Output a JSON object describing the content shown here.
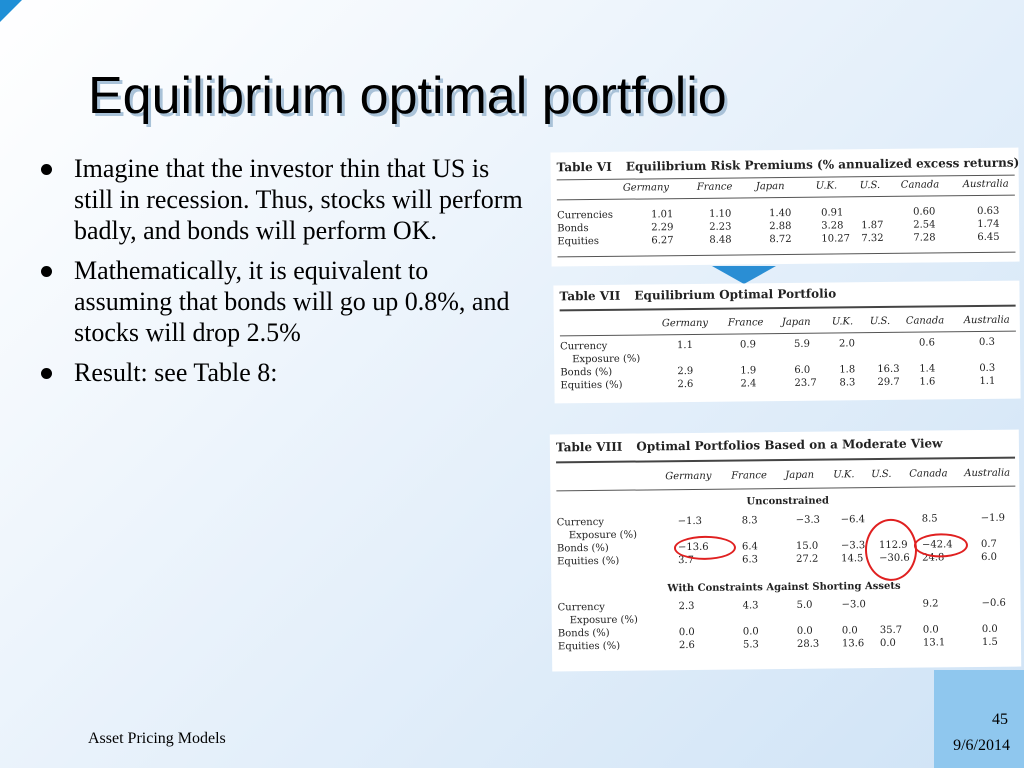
{
  "slide": {
    "title": "Equilibrium optimal portfolio",
    "bullets": [
      "Imagine that the investor thin that US is still in recession. Thus, stocks will perform badly, and bonds will perform OK.",
      "Mathematically, it is  equivalent to assuming that bonds will go up 0.8%, and stocks will drop 2.5%",
      "Result: see Table 8:"
    ],
    "footer_left": "Asset Pricing Models",
    "page_number": "45",
    "date": "9/6/2014"
  },
  "countries": [
    "Germany",
    "France",
    "Japan",
    "U.K.",
    "U.S.",
    "Canada",
    "Australia"
  ],
  "table6": {
    "label": "Table VI",
    "caption": "Equilibrium Risk Premiums (% annualized excess returns)",
    "rows": [
      {
        "label": "Currencies",
        "values": [
          "1.01",
          "1.10",
          "1.40",
          "0.91",
          "",
          "0.60",
          "0.63"
        ]
      },
      {
        "label": "Bonds",
        "values": [
          "2.29",
          "2.23",
          "2.88",
          "3.28",
          "1.87",
          "2.54",
          "1.74"
        ]
      },
      {
        "label": "Equities",
        "values": [
          "6.27",
          "8.48",
          "8.72",
          "10.27",
          "7.32",
          "7.28",
          "6.45"
        ]
      }
    ]
  },
  "table7": {
    "label": "Table VII",
    "caption": "Equilibrium Optimal Portfolio",
    "rows": [
      {
        "label": "Currency",
        "values": [
          "1.1",
          "0.9",
          "5.9",
          "2.0",
          "",
          "0.6",
          "0.3"
        ]
      },
      {
        "label": "Exposure (%)",
        "values": [
          "",
          "",
          "",
          "",
          "",
          "",
          ""
        ]
      },
      {
        "label": "Bonds (%)",
        "values": [
          "2.9",
          "1.9",
          "6.0",
          "1.8",
          "16.3",
          "1.4",
          "0.3"
        ]
      },
      {
        "label": "Equities (%)",
        "values": [
          "2.6",
          "2.4",
          "23.7",
          "8.3",
          "29.7",
          "1.6",
          "1.1"
        ]
      }
    ]
  },
  "table8": {
    "label": "Table VIII",
    "caption": "Optimal Portfolios Based on a Moderate View",
    "unconstrained_title": "Unconstrained",
    "unconstrained_rows": [
      {
        "label": "Currency",
        "values": [
          "−1.3",
          "8.3",
          "−3.3",
          "−6.4",
          "",
          "8.5",
          "−1.9"
        ]
      },
      {
        "label": "Exposure (%)",
        "values": [
          "",
          "",
          "",
          "",
          "",
          "",
          ""
        ]
      },
      {
        "label": "Bonds (%)",
        "values": [
          "−13.6",
          "6.4",
          "15.0",
          "−3.3",
          "112.9",
          "−42.4",
          "0.7"
        ]
      },
      {
        "label": "Equities (%)",
        "values": [
          "3.7",
          "6.3",
          "27.2",
          "14.5",
          "−30.6",
          "24.8",
          "6.0"
        ]
      }
    ],
    "constrained_title": "With Constraints Against Shorting Assets",
    "constrained_rows": [
      {
        "label": "Currency",
        "values": [
          "2.3",
          "4.3",
          "5.0",
          "−3.0",
          "",
          "9.2",
          "−0.6"
        ]
      },
      {
        "label": "Exposure (%)",
        "values": [
          "",
          "",
          "",
          "",
          "",
          "",
          ""
        ]
      },
      {
        "label": "Bonds (%)",
        "values": [
          "0.0",
          "0.0",
          "0.0",
          "0.0",
          "35.7",
          "0.0",
          "0.0"
        ]
      },
      {
        "label": "Equities (%)",
        "values": [
          "2.6",
          "5.3",
          "28.3",
          "13.6",
          "0.0",
          "13.1",
          "1.5"
        ]
      }
    ]
  },
  "colors": {
    "accent": "#1f8fd6",
    "corner_block": "#8fc7ee",
    "circle": "#e02020"
  }
}
